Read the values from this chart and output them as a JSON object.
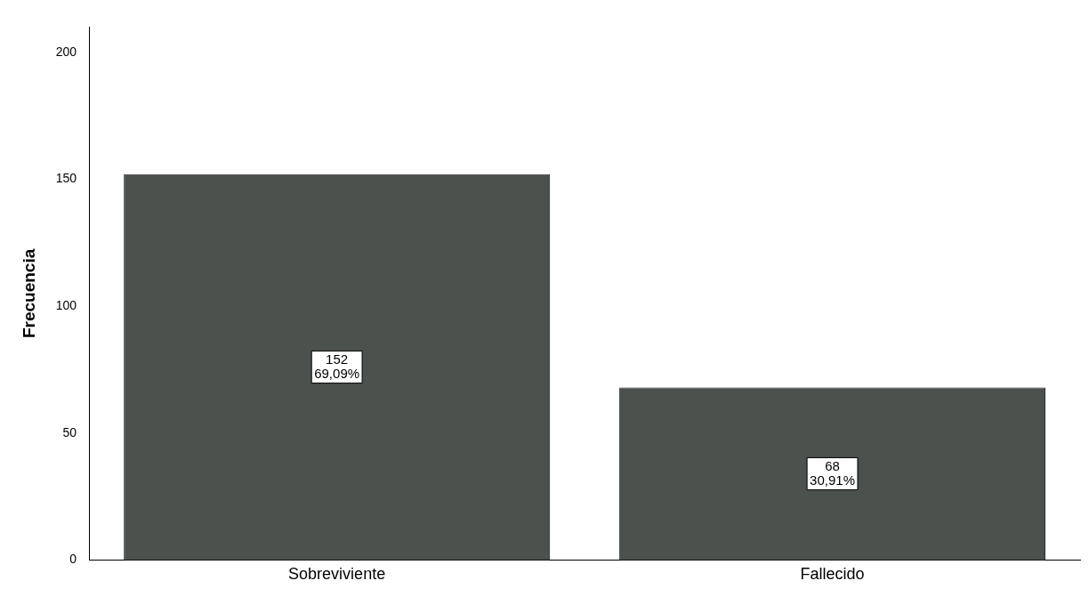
{
  "chart_data": {
    "type": "bar",
    "ylabel": "Frecuencia",
    "categories": [
      "Sobreviviente",
      "Fallecido"
    ],
    "values": [
      152,
      68
    ],
    "value_labels": [
      "152\n69,09%",
      "68\n30,91%"
    ],
    "color": "#4b514c",
    "ylim": [
      0,
      210
    ],
    "yticks": [
      0,
      50,
      100,
      150,
      200
    ],
    "grid": false,
    "legend": false
  }
}
